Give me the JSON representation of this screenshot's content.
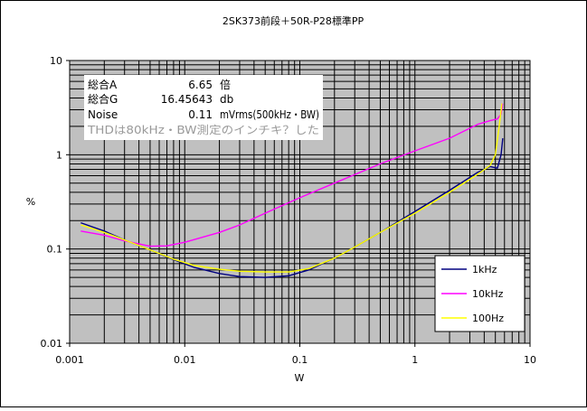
{
  "chart_data": {
    "type": "line",
    "title": "2SK373前段＋50R-P28標準PP",
    "xlabel": "W",
    "ylabel": "%",
    "xscale": "log",
    "yscale": "log",
    "xlim": [
      0.001,
      10
    ],
    "ylim": [
      0.01,
      10
    ],
    "x_ticks": [
      "0.001",
      "0.01",
      "0.1",
      "1",
      "10"
    ],
    "y_ticks": [
      "0.01",
      "0.1",
      "1",
      "10"
    ],
    "grid": true,
    "plot_background": "#c0c0c0",
    "legend_placement": "bottom-right",
    "series": [
      {
        "name": "1kHz",
        "color": "#000080",
        "points": [
          [
            0.00125,
            0.19
          ],
          [
            0.002,
            0.155
          ],
          [
            0.003,
            0.125
          ],
          [
            0.005,
            0.098
          ],
          [
            0.008,
            0.077
          ],
          [
            0.012,
            0.064
          ],
          [
            0.02,
            0.055
          ],
          [
            0.03,
            0.051
          ],
          [
            0.05,
            0.05
          ],
          [
            0.08,
            0.052
          ],
          [
            0.12,
            0.06
          ],
          [
            0.2,
            0.08
          ],
          [
            0.3,
            0.105
          ],
          [
            0.5,
            0.15
          ],
          [
            1,
            0.25
          ],
          [
            2,
            0.42
          ],
          [
            3.5,
            0.65
          ],
          [
            4.5,
            0.75
          ],
          [
            5.2,
            0.72
          ],
          [
            5.6,
            1.0
          ],
          [
            5.8,
            1.5
          ]
        ]
      },
      {
        "name": "10kHz",
        "color": "#ff00ff",
        "points": [
          [
            0.00125,
            0.155
          ],
          [
            0.002,
            0.14
          ],
          [
            0.003,
            0.122
          ],
          [
            0.005,
            0.107
          ],
          [
            0.007,
            0.108
          ],
          [
            0.01,
            0.118
          ],
          [
            0.02,
            0.15
          ],
          [
            0.03,
            0.18
          ],
          [
            0.05,
            0.24
          ],
          [
            0.1,
            0.35
          ],
          [
            0.2,
            0.5
          ],
          [
            0.5,
            0.8
          ],
          [
            1,
            1.1
          ],
          [
            2,
            1.5
          ],
          [
            3.5,
            2.1
          ],
          [
            4.5,
            2.3
          ],
          [
            5.2,
            2.4
          ],
          [
            5.6,
            2.7
          ],
          [
            5.8,
            3.5
          ]
        ]
      },
      {
        "name": "100Hz",
        "color": "#ffff00",
        "points": [
          [
            0.00125,
            0.18
          ],
          [
            0.002,
            0.15
          ],
          [
            0.003,
            0.125
          ],
          [
            0.005,
            0.098
          ],
          [
            0.008,
            0.078
          ],
          [
            0.012,
            0.067
          ],
          [
            0.02,
            0.061
          ],
          [
            0.03,
            0.058
          ],
          [
            0.05,
            0.057
          ],
          [
            0.08,
            0.057
          ],
          [
            0.12,
            0.062
          ],
          [
            0.2,
            0.08
          ],
          [
            0.3,
            0.105
          ],
          [
            0.5,
            0.15
          ],
          [
            1,
            0.24
          ],
          [
            2,
            0.4
          ],
          [
            3.5,
            0.62
          ],
          [
            4.5,
            0.77
          ],
          [
            5.0,
            1.0
          ],
          [
            5.4,
            2.0
          ],
          [
            5.7,
            3.5
          ]
        ]
      }
    ],
    "annotation": {
      "lines": [
        [
          "総合A",
          "6.65",
          "倍"
        ],
        [
          "総合G",
          "16.45643",
          "db"
        ],
        [
          "Noise",
          "0.11",
          "mVrms(500kHz・BW)"
        ]
      ],
      "note": "THDは80kHz・BW測定のインチキ？した"
    }
  }
}
